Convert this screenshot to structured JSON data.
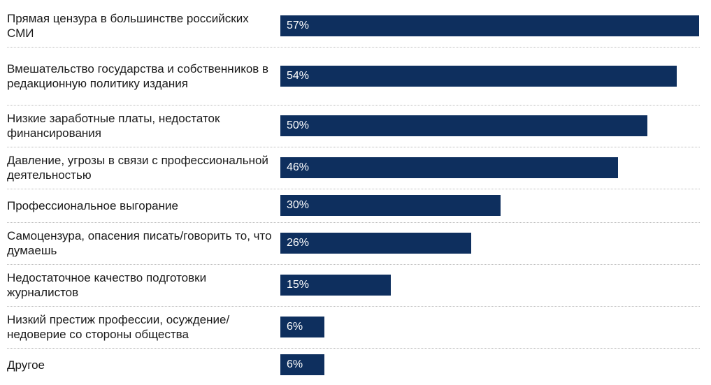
{
  "chart_data": {
    "type": "bar",
    "orientation": "horizontal",
    "bar_color": "#0e2f5e",
    "value_suffix": "%",
    "categories": [
      "Прямая цензура в большинстве российских СМИ",
      "Вмешательство государства и собственников в редакционную политику издания",
      "Низкие заработные платы, недостаток финансирования",
      "Давление, угрозы в связи с профессиональной деятельностью",
      "Профессиональное выгорание",
      "Самоцензура, опасения писать/говорить то, что думаешь",
      "Недостаточное качество подготовки журналистов",
      "Низкий престиж профессии, осуждение/недоверие со стороны общества",
      "Другое"
    ],
    "values": [
      57,
      54,
      50,
      46,
      30,
      26,
      15,
      6,
      6
    ],
    "value_labels": [
      "57%",
      "54%",
      "50%",
      "46%",
      "30%",
      "26%",
      "15%",
      "6%",
      "6%"
    ],
    "xlim": [
      0,
      57
    ],
    "grid": false,
    "legend": "none"
  }
}
